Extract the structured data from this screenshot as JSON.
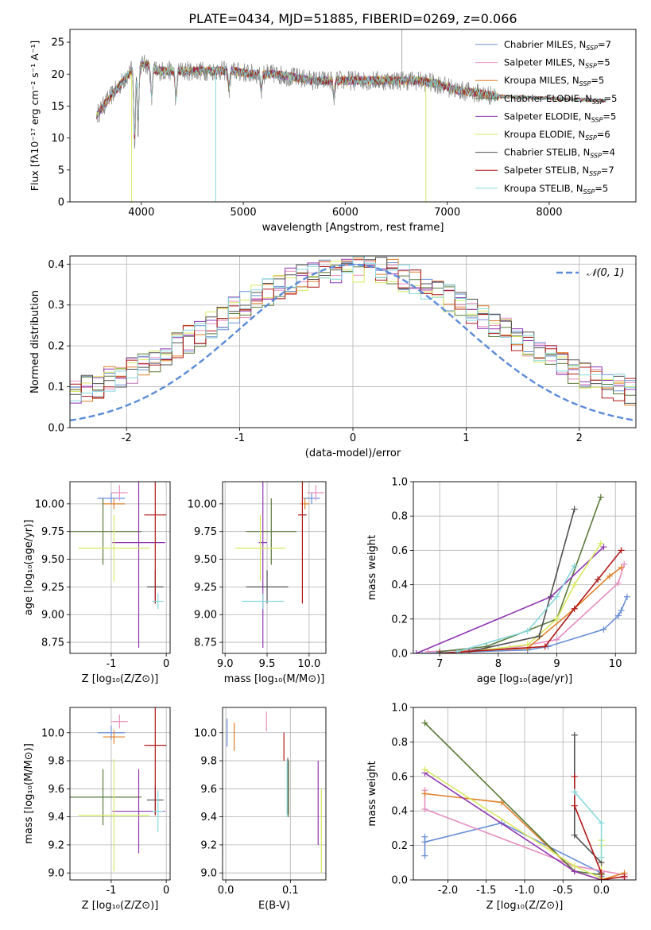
{
  "figure": {
    "title": "PLATE=0434, MJD=51885, FIBERID=0269, z=0.066",
    "colors": {
      "Chabrier MILES": "#6a8fd6",
      "Salpeter MILES": "#e58fbf",
      "Kroupa MILES": "#e0802a",
      "Chabrier ELODIE": "#5a7a3a",
      "Salpeter ELODIE": "#8e35b0",
      "Kroupa ELODIE": "#d8e860",
      "Chabrier STELIB": "#505050",
      "Salpeter STELIB": "#b01818",
      "Kroupa STELIB": "#88d8dc",
      "normal": "#5b8bd8"
    }
  },
  "chart_data": [
    {
      "id": "spectrum",
      "type": "line",
      "xlabel": "wavelength [Angstrom, rest frame]",
      "ylabel": "Flux [fλ10⁻¹⁷ erg cm⁻² s⁻¹ A⁻¹]",
      "xlim": [
        3300,
        8850
      ],
      "ylim": [
        0,
        27
      ],
      "xticks": [
        4000,
        5000,
        6000,
        7000,
        8000
      ],
      "yticks": [
        0,
        5,
        10,
        15,
        20,
        25
      ],
      "grid": false,
      "legend_position": "top-right",
      "legend": [
        "Chabrier MILES, N_SSP=7",
        "Salpeter MILES, N_SSP=5",
        "Kroupa MILES, N_SSP=5",
        "Chabrier ELODIE, N_SSP=5",
        "Salpeter ELODIE, N_SSP=5",
        "Kroupa ELODIE, N_SSP=6",
        "Chabrier STELIB, N_SSP=4",
        "Salpeter STELIB, N_SSP=7",
        "Kroupa STELIB, N_SSP=5"
      ],
      "continuum": {
        "x": [
          3560,
          3650,
          3750,
          3850,
          3950,
          4050,
          4150,
          4300,
          4500,
          4700,
          4900,
          5100,
          5300,
          5500,
          5700,
          5900,
          6100,
          6300,
          6500,
          6700,
          6900,
          7100,
          7300,
          7500
        ],
        "y": [
          13.5,
          15.5,
          17.5,
          19.5,
          21.5,
          21.5,
          20.5,
          20.5,
          20.5,
          20.5,
          20.5,
          20.0,
          20.0,
          19.5,
          19.0,
          19.0,
          19.0,
          19.0,
          19.0,
          19.0,
          18.5,
          17.5,
          17.0,
          16.5
        ]
      },
      "absorption_features": [
        {
          "x": 3934,
          "depth": 13
        },
        {
          "x": 3968,
          "depth": 10
        },
        {
          "x": 4101,
          "depth": 5
        },
        {
          "x": 4340,
          "depth": 5
        },
        {
          "x": 4861,
          "depth": 3
        },
        {
          "x": 5175,
          "depth": 2.5
        },
        {
          "x": 5890,
          "depth": 3
        }
      ]
    },
    {
      "id": "residuals",
      "type": "histogram",
      "xlabel": "(data-model)/error",
      "ylabel": "Normed distribution",
      "xlim": [
        -2.5,
        2.5
      ],
      "ylim": [
        0,
        0.42
      ],
      "xticks": [
        -2,
        -1,
        0,
        1,
        2
      ],
      "yticks": [
        0.0,
        0.1,
        0.2,
        0.3,
        0.4
      ],
      "grid": true,
      "legend": [
        "𝒩(0, 1)"
      ],
      "legend_position": "top-right",
      "normal": {
        "mu": 0,
        "sigma": 1
      },
      "bin_edges_start": -2.5,
      "bin_width": 0.1
    },
    {
      "id": "age-vs-Z",
      "type": "errorbar",
      "xlabel": "Z [log₁₀(Z/Z⊙)]",
      "ylabel": "age  [log₁₀(age/yr)]",
      "xlim": [
        -1.75,
        0.07
      ],
      "ylim": [
        8.65,
        10.2
      ],
      "xticks": [
        -1,
        0
      ],
      "yticks": [
        8.75,
        9.0,
        9.25,
        9.5,
        9.75,
        10.0
      ],
      "grid": true,
      "points": [
        {
          "model": "Chabrier MILES",
          "x": -1.0,
          "xerr": 0.25,
          "y": 10.05,
          "yerr": 0.05
        },
        {
          "model": "Salpeter MILES",
          "x": -0.85,
          "xerr": 0.15,
          "y": 10.1,
          "yerr": 0.07
        },
        {
          "model": "Kroupa MILES",
          "x": -0.95,
          "xerr": 0.2,
          "y": 10.0,
          "yerr": 0.05
        },
        {
          "model": "Chabrier ELODIE",
          "x": -1.15,
          "xerr": 0.7,
          "y": 9.75,
          "yerr": 0.3
        },
        {
          "model": "Salpeter ELODIE",
          "x": -0.5,
          "xerr": 0.48,
          "y": 9.65,
          "yerr": 0.95
        },
        {
          "model": "Kroupa ELODIE",
          "x": -0.95,
          "xerr": 0.65,
          "y": 9.6,
          "yerr": 0.3
        },
        {
          "model": "Chabrier STELIB",
          "x": -0.2,
          "xerr": 0.15,
          "y": 9.25,
          "yerr": 0.15
        },
        {
          "model": "Salpeter STELIB",
          "x": -0.2,
          "xerr": 0.2,
          "y": 9.9,
          "yerr": 0.8
        },
        {
          "model": "Kroupa STELIB",
          "x": -0.15,
          "xerr": 0.1,
          "y": 9.12,
          "yerr": 0.07
        }
      ]
    },
    {
      "id": "age-vs-mass",
      "type": "errorbar",
      "xlabel": "mass [log₁₀(M/M⊙)]",
      "ylabel": "",
      "xlim": [
        8.97,
        10.2
      ],
      "ylim": [
        8.65,
        10.2
      ],
      "xticks": [
        9.0,
        9.5,
        10.0
      ],
      "yticks": [
        8.75,
        9.0,
        9.25,
        9.5,
        9.75,
        10.0
      ],
      "grid": true,
      "points": [
        {
          "model": "Chabrier MILES",
          "x": 10.03,
          "xerr": 0.1,
          "y": 10.05,
          "yerr": 0.05
        },
        {
          "model": "Salpeter MILES",
          "x": 10.08,
          "xerr": 0.1,
          "y": 10.1,
          "yerr": 0.07
        },
        {
          "model": "Kroupa MILES",
          "x": 9.95,
          "xerr": 0.05,
          "y": 10.0,
          "yerr": 0.05
        },
        {
          "model": "Chabrier ELODIE",
          "x": 9.55,
          "xerr": 0.3,
          "y": 9.75,
          "yerr": 0.3
        },
        {
          "model": "Salpeter ELODIE",
          "x": 9.45,
          "xerr": 0.05,
          "y": 9.65,
          "yerr": 0.95
        },
        {
          "model": "Kroupa ELODIE",
          "x": 9.42,
          "xerr": 0.3,
          "y": 9.6,
          "yerr": 0.3
        },
        {
          "model": "Chabrier STELIB",
          "x": 9.5,
          "xerr": 0.25,
          "y": 9.25,
          "yerr": 0.15
        },
        {
          "model": "Salpeter STELIB",
          "x": 9.92,
          "xerr": 0.05,
          "y": 9.9,
          "yerr": 0.8
        },
        {
          "model": "Kroupa STELIB",
          "x": 9.45,
          "xerr": 0.25,
          "y": 9.12,
          "yerr": 0.07
        }
      ]
    },
    {
      "id": "massweight-vs-age",
      "type": "line",
      "xlabel": "age  [log₁₀(age/yr)]",
      "ylabel": "mass weight",
      "xlim": [
        6.55,
        10.35
      ],
      "ylim": [
        0,
        1.0
      ],
      "xticks": [
        7,
        8,
        9,
        10
      ],
      "yticks": [
        0.0,
        0.2,
        0.4,
        0.6,
        0.8,
        1.0
      ],
      "grid": true,
      "series": [
        {
          "model": "Chabrier MILES",
          "x": [
            6.7,
            8.5,
            8.85,
            9.8,
            10.05,
            10.1,
            10.2
          ],
          "y": [
            0.0,
            0.02,
            0.04,
            0.14,
            0.22,
            0.25,
            0.33
          ]
        },
        {
          "model": "Salpeter MILES",
          "x": [
            6.8,
            8.2,
            9.0,
            10.05,
            10.15
          ],
          "y": [
            0.01,
            0.03,
            0.08,
            0.41,
            0.52
          ]
        },
        {
          "model": "Kroupa MILES",
          "x": [
            7.3,
            8.5,
            9.3,
            9.9,
            10.1
          ],
          "y": [
            0.01,
            0.03,
            0.26,
            0.45,
            0.5
          ]
        },
        {
          "model": "Chabrier ELODIE",
          "x": [
            7.0,
            7.8,
            9.0,
            9.75
          ],
          "y": [
            0.01,
            0.04,
            0.2,
            0.91
          ]
        },
        {
          "model": "Salpeter ELODIE",
          "x": [
            6.6,
            8.9,
            9.8
          ],
          "y": [
            0.0,
            0.33,
            0.62
          ]
        },
        {
          "model": "Kroupa ELODIE",
          "x": [
            7.5,
            8.5,
            9.0,
            9.3,
            9.75
          ],
          "y": [
            0.01,
            0.05,
            0.2,
            0.4,
            0.64
          ]
        },
        {
          "model": "Chabrier STELIB",
          "x": [
            7.5,
            8.7,
            9.3
          ],
          "y": [
            0.01,
            0.1,
            0.84
          ]
        },
        {
          "model": "Salpeter STELIB",
          "x": [
            7.0,
            8.8,
            9.3,
            9.7,
            10.1
          ],
          "y": [
            0.0,
            0.04,
            0.26,
            0.43,
            0.6
          ]
        },
        {
          "model": "Kroupa STELIB",
          "x": [
            7.3,
            8.5,
            9.0,
            9.3
          ],
          "y": [
            0.01,
            0.13,
            0.33,
            0.51
          ]
        }
      ]
    },
    {
      "id": "mass-vs-Z",
      "type": "errorbar",
      "xlabel": "Z [log₁₀(Z/Z⊙)]",
      "ylabel": "mass [log₁₀(M/M⊙)]",
      "xlim": [
        -1.75,
        0.07
      ],
      "ylim": [
        8.95,
        10.18
      ],
      "xticks": [
        -1,
        0
      ],
      "yticks": [
        9.0,
        9.2,
        9.4,
        9.6,
        9.8,
        10.0
      ],
      "grid": true,
      "points": [
        {
          "model": "Chabrier MILES",
          "x": -1.0,
          "xerr": 0.25,
          "y": 10.0,
          "yerr": 0.05
        },
        {
          "model": "Salpeter MILES",
          "x": -0.85,
          "xerr": 0.15,
          "y": 10.08,
          "yerr": 0.05
        },
        {
          "model": "Kroupa MILES",
          "x": -0.95,
          "xerr": 0.2,
          "y": 9.97,
          "yerr": 0.05
        },
        {
          "model": "Chabrier ELODIE",
          "x": -1.15,
          "xerr": 0.7,
          "y": 9.54,
          "yerr": 0.2
        },
        {
          "model": "Salpeter ELODIE",
          "x": -0.5,
          "xerr": 0.48,
          "y": 9.44,
          "yerr": 0.3
        },
        {
          "model": "Kroupa ELODIE",
          "x": -0.95,
          "xerr": 0.65,
          "y": 9.41,
          "yerr": 0.4
        },
        {
          "model": "Chabrier STELIB",
          "x": -0.2,
          "xerr": 0.15,
          "y": 9.52,
          "yerr": 0.1
        },
        {
          "model": "Salpeter STELIB",
          "x": -0.2,
          "xerr": 0.2,
          "y": 9.91,
          "yerr": 0.5
        },
        {
          "model": "Kroupa STELIB",
          "x": -0.15,
          "xerr": 0.1,
          "y": 9.44,
          "yerr": 0.15
        }
      ]
    },
    {
      "id": "mass-vs-EBV",
      "type": "errorbar",
      "xlabel": "E(B-V)",
      "ylabel": "",
      "xlim": [
        -0.005,
        0.155
      ],
      "ylim": [
        8.95,
        10.18
      ],
      "xticks": [
        0.0,
        0.1
      ],
      "yticks": [
        9.0,
        9.2,
        9.4,
        9.6,
        9.8,
        10.0
      ],
      "grid": true,
      "points": [
        {
          "model": "Chabrier MILES",
          "x": 0.002,
          "y": 10.0,
          "yerr": 0.1
        },
        {
          "model": "Salpeter MILES",
          "x": 0.063,
          "y": 10.08,
          "yerr": 0.07
        },
        {
          "model": "Kroupa MILES",
          "x": 0.013,
          "y": 9.97,
          "yerr": 0.1
        },
        {
          "model": "Chabrier ELODIE",
          "x": 0.097,
          "y": 9.6,
          "yerr": 0.2
        },
        {
          "model": "Salpeter ELODIE",
          "x": 0.143,
          "y": 9.5,
          "yerr": 0.3
        },
        {
          "model": "Kroupa ELODIE",
          "x": 0.148,
          "y": 9.3,
          "yerr": 0.3
        },
        {
          "model": "Chabrier STELIB",
          "x": 0.096,
          "y": 9.62,
          "yerr": 0.2
        },
        {
          "model": "Salpeter STELIB",
          "x": 0.09,
          "y": 9.9,
          "yerr": 0.1
        },
        {
          "model": "Kroupa STELIB",
          "x": 0.095,
          "y": 9.6,
          "yerr": 0.2
        }
      ]
    },
    {
      "id": "massweight-vs-Z",
      "type": "line",
      "xlabel": "Z [log₁₀(Z/Z⊙)]",
      "ylabel": "mass weight",
      "xlim": [
        -2.45,
        0.45
      ],
      "ylim": [
        0,
        1.0
      ],
      "xticks": [
        -2.0,
        -1.5,
        -1.0,
        -0.5,
        0.0
      ],
      "yticks": [
        0.0,
        0.2,
        0.4,
        0.6,
        0.8,
        1.0
      ],
      "grid": true,
      "series": [
        {
          "model": "Chabrier MILES",
          "x": [
            -2.3,
            -2.3,
            -2.3,
            -1.3,
            0.0,
            0.0,
            0.0
          ],
          "y": [
            0.14,
            0.25,
            0.22,
            0.33,
            0.04,
            0.02,
            0.0
          ]
        },
        {
          "model": "Salpeter MILES",
          "x": [
            -2.3,
            -2.3,
            -0.35,
            0.3,
            0.3
          ],
          "y": [
            0.52,
            0.41,
            0.08,
            0.03,
            0.01
          ]
        },
        {
          "model": "Kroupa MILES",
          "x": [
            -2.3,
            -1.3,
            -0.35,
            0.0,
            0.3
          ],
          "y": [
            0.5,
            0.45,
            0.05,
            0.0,
            0.04
          ]
        },
        {
          "model": "Chabrier ELODIE",
          "x": [
            -2.3,
            -0.35,
            0.0,
            0.0
          ],
          "y": [
            0.91,
            0.05,
            0.03,
            0.0
          ]
        },
        {
          "model": "Salpeter ELODIE",
          "x": [
            -2.3,
            -0.35,
            0.0
          ],
          "y": [
            0.62,
            0.05,
            0.0
          ]
        },
        {
          "model": "Kroupa ELODIE",
          "x": [
            -2.3,
            -0.35,
            0.0,
            0.0,
            0.0
          ],
          "y": [
            0.64,
            0.08,
            0.01,
            0.2,
            0.23
          ]
        },
        {
          "model": "Chabrier STELIB",
          "x": [
            -0.35,
            -0.35,
            0.0
          ],
          "y": [
            0.84,
            0.26,
            0.1
          ]
        },
        {
          "model": "Salpeter STELIB",
          "x": [
            -0.35,
            -0.35,
            0.0,
            0.0,
            0.3
          ],
          "y": [
            0.6,
            0.43,
            0.04,
            0.0,
            0.02
          ]
        },
        {
          "model": "Kroupa STELIB",
          "x": [
            -0.35,
            -0.35,
            0.0,
            0.0
          ],
          "y": [
            0.51,
            0.51,
            0.33,
            0.13
          ]
        }
      ]
    }
  ]
}
